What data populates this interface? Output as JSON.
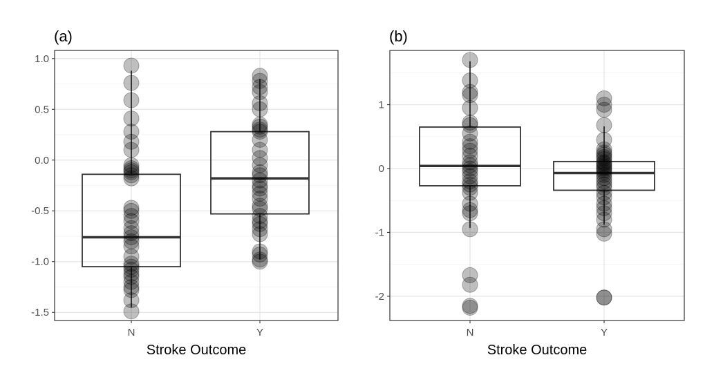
{
  "chart_data": [
    {
      "type": "boxplot",
      "panel_tag": "(a)",
      "xlabel": "Stroke Outcome",
      "ylabel": "",
      "categories": [
        "N",
        "Y"
      ],
      "ylim": [
        -1.58,
        1.08
      ],
      "yticks": [
        1.0,
        0.5,
        0.0,
        -0.5,
        -1.0,
        -1.5
      ],
      "ytick_labels": [
        "1.0",
        "0.5",
        "0.0",
        "-0.5",
        "-1.0",
        "-1.5"
      ],
      "grid": true,
      "boxes": [
        {
          "category": "N",
          "q1": -1.05,
          "median": -0.76,
          "q3": -0.14,
          "whisker_low": -1.45,
          "whisker_high": 0.88
        },
        {
          "category": "Y",
          "q1": -0.53,
          "median": -0.18,
          "q3": 0.28,
          "whisker_low": -0.98,
          "whisker_high": 0.8
        }
      ],
      "points": [
        {
          "category": "N",
          "values": [
            0.93,
            0.76,
            0.59,
            0.41,
            0.28,
            0.18,
            0.1,
            -0.05,
            -0.08,
            -0.1,
            -0.12,
            -0.15,
            -0.18,
            -0.47,
            -0.5,
            -0.55,
            -0.6,
            -0.67,
            -0.72,
            -0.76,
            -0.8,
            -0.85,
            -0.95,
            -1.02,
            -1.05,
            -1.08,
            -1.12,
            -1.15,
            -1.2,
            -1.25,
            -1.28,
            -1.38,
            -1.49
          ]
        },
        {
          "category": "Y",
          "values": [
            0.83,
            0.78,
            0.72,
            0.67,
            0.56,
            0.5,
            0.35,
            0.33,
            0.3,
            0.28,
            0.2,
            0.1,
            0.02,
            -0.05,
            -0.12,
            -0.15,
            -0.2,
            -0.25,
            -0.28,
            -0.33,
            -0.38,
            -0.45,
            -0.48,
            -0.55,
            -0.6,
            -0.63,
            -0.68,
            -0.73,
            -0.9,
            -0.93,
            -0.98,
            -1.0
          ]
        }
      ]
    },
    {
      "type": "boxplot",
      "panel_tag": "(b)",
      "xlabel": "Stroke Outcome",
      "ylabel": "",
      "categories": [
        "N",
        "Y"
      ],
      "ylim": [
        -2.38,
        1.85
      ],
      "yticks": [
        1,
        0,
        -1,
        -2
      ],
      "ytick_labels": [
        "1",
        "0",
        "-1",
        "-2"
      ],
      "grid": true,
      "boxes": [
        {
          "category": "N",
          "q1": -0.27,
          "median": 0.04,
          "q3": 0.65,
          "whisker_low": -0.93,
          "whisker_high": 1.68
        },
        {
          "category": "Y",
          "q1": -0.34,
          "median": -0.07,
          "q3": 0.11,
          "whisker_low": -0.88,
          "whisker_high": 0.66
        }
      ],
      "points": [
        {
          "category": "N",
          "values": [
            1.7,
            1.38,
            1.2,
            1.15,
            0.95,
            0.72,
            0.68,
            0.55,
            0.42,
            0.35,
            0.28,
            0.2,
            0.1,
            0.05,
            0.0,
            -0.05,
            -0.12,
            -0.2,
            -0.25,
            -0.3,
            -0.38,
            -0.55,
            -0.65,
            -0.7,
            -0.95,
            -1.67,
            -1.82,
            -2.15,
            -2.18
          ]
        },
        {
          "category": "Y",
          "values": [
            1.1,
            1.0,
            0.92,
            0.68,
            0.45,
            0.3,
            0.25,
            0.22,
            0.18,
            0.15,
            0.1,
            0.08,
            0.05,
            0.02,
            0.0,
            -0.03,
            -0.06,
            -0.1,
            -0.15,
            -0.2,
            -0.25,
            -0.3,
            -0.38,
            -0.45,
            -0.55,
            -0.62,
            -0.7,
            -0.8,
            -0.95,
            -1.02,
            -2.02,
            -2.02
          ]
        }
      ]
    }
  ]
}
